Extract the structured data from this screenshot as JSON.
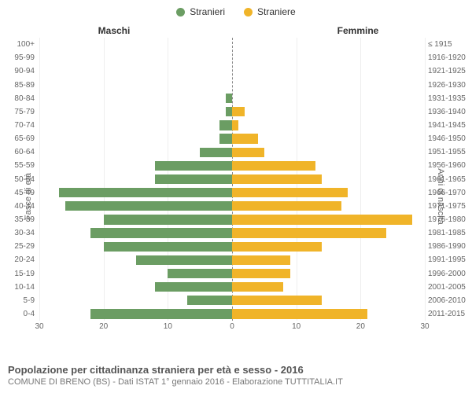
{
  "chart": {
    "type": "population-pyramid",
    "legend": {
      "male": {
        "label": "Stranieri",
        "color": "#6b9d63"
      },
      "female": {
        "label": "Straniere",
        "color": "#f0b429"
      }
    },
    "headers": {
      "left": "Maschi",
      "right": "Femmine"
    },
    "y_left_title": "Fasce di età",
    "y_right_title": "Anni di nascita",
    "xlim": 30,
    "xticks": [
      30,
      20,
      10,
      0,
      10,
      20,
      30
    ],
    "background_color": "#ffffff",
    "grid_color": "#eeeeee",
    "center_line_color": "#888888",
    "bar_height_ratio": 0.72,
    "rows": [
      {
        "age": "0-4",
        "birth": "2011-2015",
        "m": 22,
        "f": 21
      },
      {
        "age": "5-9",
        "birth": "2006-2010",
        "m": 7,
        "f": 14
      },
      {
        "age": "10-14",
        "birth": "2001-2005",
        "m": 12,
        "f": 8
      },
      {
        "age": "15-19",
        "birth": "1996-2000",
        "m": 10,
        "f": 9
      },
      {
        "age": "20-24",
        "birth": "1991-1995",
        "m": 15,
        "f": 9
      },
      {
        "age": "25-29",
        "birth": "1986-1990",
        "m": 20,
        "f": 14
      },
      {
        "age": "30-34",
        "birth": "1981-1985",
        "m": 22,
        "f": 24
      },
      {
        "age": "35-39",
        "birth": "1976-1980",
        "m": 20,
        "f": 28
      },
      {
        "age": "40-44",
        "birth": "1971-1975",
        "m": 26,
        "f": 17
      },
      {
        "age": "45-49",
        "birth": "1966-1970",
        "m": 27,
        "f": 18
      },
      {
        "age": "50-54",
        "birth": "1961-1965",
        "m": 12,
        "f": 14
      },
      {
        "age": "55-59",
        "birth": "1956-1960",
        "m": 12,
        "f": 13
      },
      {
        "age": "60-64",
        "birth": "1951-1955",
        "m": 5,
        "f": 5
      },
      {
        "age": "65-69",
        "birth": "1946-1950",
        "m": 2,
        "f": 4
      },
      {
        "age": "70-74",
        "birth": "1941-1945",
        "m": 2,
        "f": 1
      },
      {
        "age": "75-79",
        "birth": "1936-1940",
        "m": 1,
        "f": 2
      },
      {
        "age": "80-84",
        "birth": "1931-1935",
        "m": 1,
        "f": 0
      },
      {
        "age": "85-89",
        "birth": "1926-1930",
        "m": 0,
        "f": 0
      },
      {
        "age": "90-94",
        "birth": "1921-1925",
        "m": 0,
        "f": 0
      },
      {
        "age": "95-99",
        "birth": "1916-1920",
        "m": 0,
        "f": 0
      },
      {
        "age": "100+",
        "birth": "≤ 1915",
        "m": 0,
        "f": 0
      }
    ]
  },
  "footer": {
    "title": "Popolazione per cittadinanza straniera per età e sesso - 2016",
    "subtitle": "COMUNE DI BRENO (BS) - Dati ISTAT 1° gennaio 2016 - Elaborazione TUTTITALIA.IT"
  }
}
